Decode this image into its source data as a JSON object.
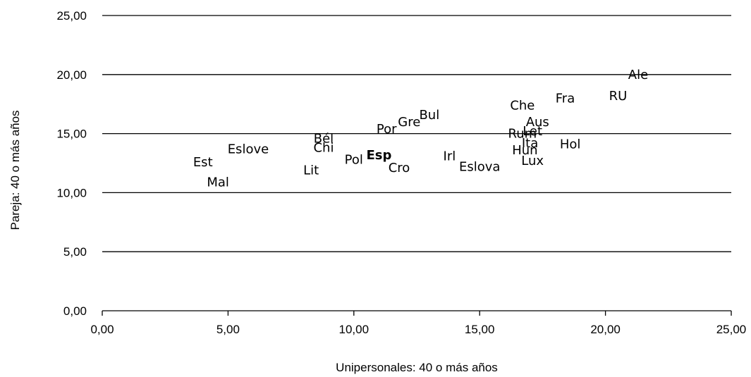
{
  "chart_data": {
    "type": "scatter",
    "xlabel": "Unipersonales: 40 o más años",
    "ylabel": "Pareja: 40 o más años",
    "xlim": [
      0,
      25
    ],
    "ylim": [
      0,
      25
    ],
    "x_ticks": [
      "0,00",
      "5,00",
      "10,00",
      "15,00",
      "20,00",
      "25,00"
    ],
    "y_ticks": [
      "0,00",
      "5,00",
      "10,00",
      "15,00",
      "20,00",
      "25,00"
    ],
    "grid": "horizontal",
    "marker": "text-label",
    "highlight": "Esp",
    "points": [
      {
        "label": "Ale",
        "x": 21.3,
        "y": 20.0
      },
      {
        "label": "RU",
        "x": 20.5,
        "y": 18.2
      },
      {
        "label": "Fra",
        "x": 18.4,
        "y": 18.0
      },
      {
        "label": "Che",
        "x": 16.7,
        "y": 17.4
      },
      {
        "label": "Aus",
        "x": 17.3,
        "y": 16.0
      },
      {
        "label": "Bul",
        "x": 13.0,
        "y": 16.6
      },
      {
        "label": "Gre",
        "x": 12.2,
        "y": 16.0
      },
      {
        "label": "Por",
        "x": 11.3,
        "y": 15.4
      },
      {
        "label": "Let",
        "x": 17.1,
        "y": 15.2
      },
      {
        "label": "Rum",
        "x": 16.7,
        "y": 15.0
      },
      {
        "label": "Bél",
        "x": 8.8,
        "y": 14.6
      },
      {
        "label": "Ita",
        "x": 17.0,
        "y": 14.2
      },
      {
        "label": "Hol",
        "x": 18.6,
        "y": 14.1
      },
      {
        "label": "Eslove",
        "x": 5.8,
        "y": 13.7
      },
      {
        "label": "Chi",
        "x": 8.8,
        "y": 13.8
      },
      {
        "label": "Hun",
        "x": 16.8,
        "y": 13.6
      },
      {
        "label": "Irl",
        "x": 13.8,
        "y": 13.1
      },
      {
        "label": "Esp",
        "x": 11.0,
        "y": 13.2
      },
      {
        "label": "Est",
        "x": 4.0,
        "y": 12.6
      },
      {
        "label": "Pol",
        "x": 10.0,
        "y": 12.8
      },
      {
        "label": "Lux",
        "x": 17.1,
        "y": 12.7
      },
      {
        "label": "Eslova",
        "x": 15.0,
        "y": 12.2
      },
      {
        "label": "Cro",
        "x": 11.8,
        "y": 12.1
      },
      {
        "label": "Lit",
        "x": 8.3,
        "y": 11.9
      },
      {
        "label": "Mal",
        "x": 4.6,
        "y": 10.9
      }
    ]
  }
}
